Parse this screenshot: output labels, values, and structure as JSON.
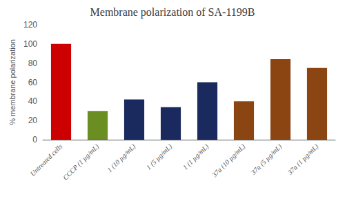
{
  "chart_data": {
    "type": "bar",
    "title": "Membrane polarization of SA-1199B",
    "ylabel": "% membrane polarization",
    "categories": [
      "Untreated cells",
      "CCCP (1 µg/mL)",
      "1 (10 µg/mL)",
      "1 (5 µg/mL)",
      "1 (1 µg/mL)",
      "37a (10 µg/mL)",
      "37a (5 µg/mL)",
      "37a (1 µg/mL)"
    ],
    "values": [
      100,
      30,
      42,
      34,
      60,
      40,
      84,
      75
    ],
    "colors": [
      "#cc0000",
      "#6b8e23",
      "#1a2a5e",
      "#1a2a5e",
      "#1a2a5e",
      "#8b4513",
      "#8b4513",
      "#8b4513"
    ],
    "ylim": [
      0,
      120
    ],
    "yticks": [
      0,
      20,
      40,
      60,
      80,
      100,
      120
    ],
    "grid": false
  }
}
